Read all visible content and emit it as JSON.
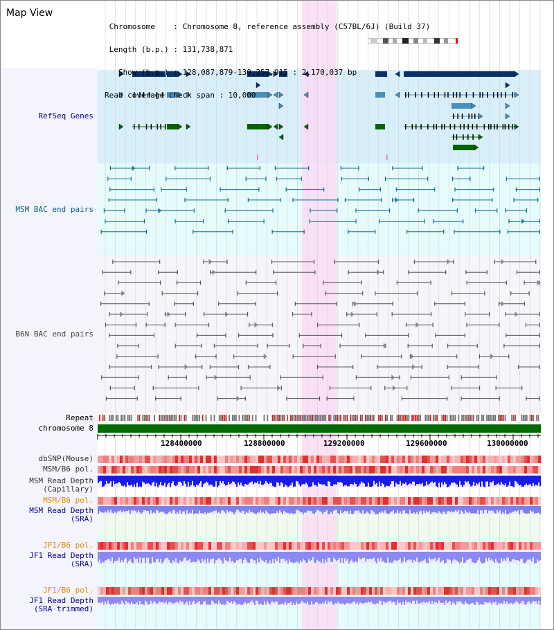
{
  "view_title": "Map View",
  "header": {
    "lines": [
      " Chromosome    : Chromosome 8, reference assembly (C57BL/6J) (Build 37)",
      " Length (b.p.) : 131,738,871",
      "   Show (b.p.) : 128,087,879-130,257,915 : 2,170,037 bp",
      "Read coverage check span : 10,000"
    ]
  },
  "tracks": {
    "refseq": "RefSeq Genes",
    "msm_bac": "MSM BAC end pairs",
    "b6n_bac": "B6N BAC end pairs",
    "repeat": "Repeat",
    "chromosome": "chromosome 8",
    "dbsnp": "dbSNP(Mouse)",
    "msm_b6_pol_1": "MSM/B6 pol.",
    "msm_depth_cap_1": "MSM Read Depth",
    "msm_depth_cap_2": "(Capillary)",
    "msm_b6_pol_2": "MSM/B6 pol.",
    "msm_depth_sra_1": "MSM Read Depth",
    "msm_depth_sra_2": "(SRA)",
    "jf1_b6_pol_1": "JF1/B6 pol.",
    "jf1_depth_sra_1": "JF1 Read Depth",
    "jf1_depth_sra_2": "(SRA)",
    "jf1_b6_pol_2": "JF1/B6 pol.",
    "jf1_depth_trim_1": "JF1 Read Depth",
    "jf1_depth_trim_2": "(SRA trimmed)"
  },
  "axis": {
    "ticks": [
      "128400000",
      "128800000",
      "129200000",
      "129600000",
      "130000000"
    ]
  },
  "colors": {
    "label_blue": "#00008b",
    "label_teal": "#006080",
    "label_grey": "#444444",
    "label_orange": "#e08a00",
    "gene_navy": "#0b2f66",
    "gene_blue": "#4a8fb8",
    "gene_green": "#006400",
    "highlight": "#fadcf4"
  }
}
